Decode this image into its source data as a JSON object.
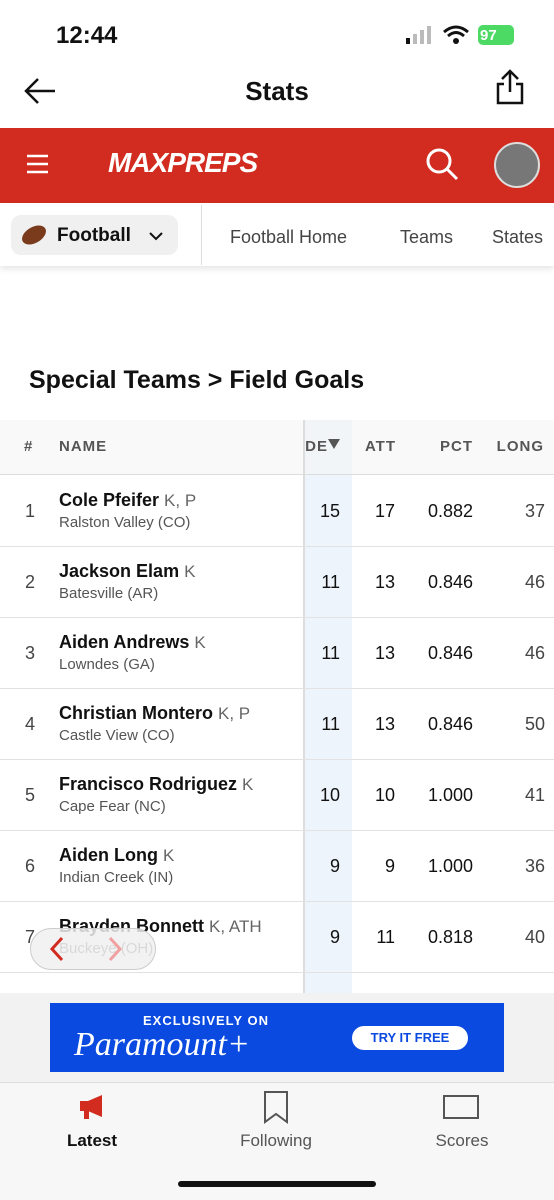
{
  "status": {
    "time": "12:44",
    "battery": "97"
  },
  "nav": {
    "title": "Stats"
  },
  "brand": "MAXPREPS",
  "sport": "Football",
  "tabs": [
    "Football Home",
    "Teams",
    "States"
  ],
  "section_title": "Special Teams > Field Goals",
  "table": {
    "headers": [
      "#",
      "NAME",
      "DE",
      "ATT",
      "PCT",
      "LONG"
    ],
    "rows": [
      {
        "rank": 1,
        "name": "Cole Pfeifer",
        "pos": "K, P",
        "school": "Ralston Valley (CO)",
        "made": 15,
        "att": 17,
        "pct": "0.882",
        "long": 37
      },
      {
        "rank": 2,
        "name": "Jackson Elam",
        "pos": "K",
        "school": "Batesville (AR)",
        "made": 11,
        "att": 13,
        "pct": "0.846",
        "long": 46
      },
      {
        "rank": 3,
        "name": "Aiden Andrews",
        "pos": "K",
        "school": "Lowndes (GA)",
        "made": 11,
        "att": 13,
        "pct": "0.846",
        "long": 46
      },
      {
        "rank": 4,
        "name": "Christian Montero",
        "pos": "K, P",
        "school": "Castle View (CO)",
        "made": 11,
        "att": 13,
        "pct": "0.846",
        "long": 50
      },
      {
        "rank": 5,
        "name": "Francisco Rodriguez",
        "pos": "K",
        "school": "Cape Fear (NC)",
        "made": 10,
        "att": 10,
        "pct": "1.000",
        "long": 41
      },
      {
        "rank": 6,
        "name": "Aiden Long",
        "pos": "K",
        "school": "Indian Creek (IN)",
        "made": 9,
        "att": 9,
        "pct": "1.000",
        "long": 36
      },
      {
        "rank": 7,
        "name": "Brayden Bonnett",
        "pos": "K, ATH",
        "school": "Buckeye (OH)",
        "made": 9,
        "att": 11,
        "pct": "0.818",
        "long": 40
      }
    ]
  },
  "ad": {
    "kicker": "EXCLUSIVELY ON",
    "brand": "Paramount+",
    "cta": "TRY IT FREE"
  },
  "bottom_tabs": [
    "Latest",
    "Following",
    "Scores"
  ]
}
